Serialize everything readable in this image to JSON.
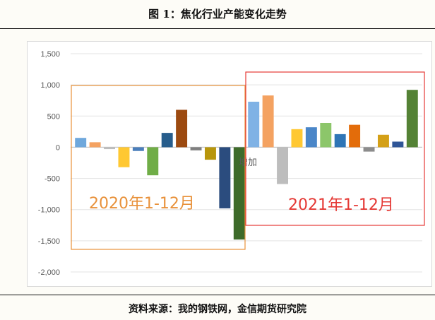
{
  "figure_title": "图 1：焦化行业产能变化走势",
  "source_note": "资料来源：我的钢铁网，金信期货研究院",
  "chart_data": {
    "type": "bar",
    "title": "",
    "xlabel": "",
    "ylabel": "",
    "ylim": [
      -2000,
      1500
    ],
    "yticks": [
      1500,
      1000,
      500,
      0,
      -500,
      -1000,
      -1500,
      -2000
    ],
    "ytick_labels": [
      "1,500",
      "1,000",
      "500",
      "0",
      "-500",
      "-1,000",
      "-1,500",
      "-2,000"
    ],
    "grid": true,
    "legend": "none",
    "overlapping_label": "增加",
    "groups": [
      {
        "label": "2020年1-12月",
        "box_color": "#e8913a",
        "label_color": "#e8913a",
        "bars": [
          {
            "value": 150,
            "color": "#6fa8dc"
          },
          {
            "value": 80,
            "color": "#f4a261"
          },
          {
            "value": -30,
            "color": "#bdbdbd"
          },
          {
            "value": -320,
            "color": "#ffc832"
          },
          {
            "value": -60,
            "color": "#4a7ebb"
          },
          {
            "value": -450,
            "color": "#70ad47"
          },
          {
            "value": 230,
            "color": "#275d8c"
          },
          {
            "value": 600,
            "color": "#9c4a10"
          },
          {
            "value": -50,
            "color": "#7f7f7f"
          },
          {
            "value": -200,
            "color": "#b8960c"
          },
          {
            "value": -980,
            "color": "#2b4c7e"
          },
          {
            "value": -1480,
            "color": "#3e6b2a"
          }
        ]
      },
      {
        "label": "2021年1-12月",
        "box_color": "#e53935",
        "label_color": "#e53935",
        "bars": [
          {
            "value": 730,
            "color": "#7fb2e5"
          },
          {
            "value": 830,
            "color": "#f4a261"
          },
          {
            "value": -590,
            "color": "#bdbdbd"
          },
          {
            "value": 290,
            "color": "#ffc832"
          },
          {
            "value": 320,
            "color": "#4a86c8"
          },
          {
            "value": 390,
            "color": "#8cc66a"
          },
          {
            "value": 210,
            "color": "#2e75b6"
          },
          {
            "value": 360,
            "color": "#e36c0a"
          },
          {
            "value": -70,
            "color": "#8c8c8c"
          },
          {
            "value": 200,
            "color": "#d4a017"
          },
          {
            "value": 90,
            "color": "#2f5597"
          },
          {
            "value": 920,
            "color": "#548235"
          }
        ]
      }
    ]
  }
}
